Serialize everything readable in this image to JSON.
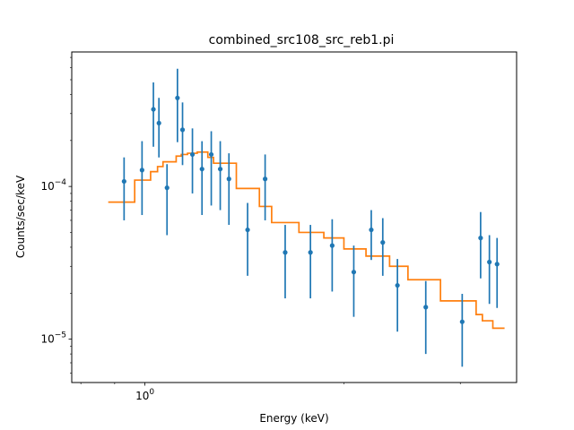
{
  "chart_data": {
    "type": "scatter",
    "title": "combined_src108_src_reb1.pi",
    "xlabel": "Energy (keV)",
    "ylabel": "Counts/sec/keV",
    "xscale": "log",
    "yscale": "log",
    "xlim": [
      0.775,
      3.65
    ],
    "ylim": [
      5.2e-06,
      0.00076
    ],
    "x_tick_labels": [
      {
        "value": 1.0,
        "label": "10^0"
      }
    ],
    "y_tick_labels": [
      {
        "value": 1e-05,
        "label": "10^-5"
      },
      {
        "value": 0.0001,
        "label": "10^-4"
      }
    ],
    "grid": false,
    "colors": {
      "data": "#1f77b4",
      "model": "#ff7f0e"
    },
    "series": [
      {
        "kind": "data-with-errorbars",
        "points": [
          {
            "x": 0.93,
            "y": 0.000108,
            "ylo": 6e-05,
            "yhi": 0.000155
          },
          {
            "x": 0.99,
            "y": 0.000128,
            "ylo": 6.5e-05,
            "yhi": 0.000198
          },
          {
            "x": 1.03,
            "y": 0.00032,
            "ylo": 0.000182,
            "yhi": 0.00048
          },
          {
            "x": 1.05,
            "y": 0.00026,
            "ylo": 0.000155,
            "yhi": 0.00038
          },
          {
            "x": 1.08,
            "y": 9.8e-05,
            "ylo": 4.8e-05,
            "yhi": 0.00014
          },
          {
            "x": 1.12,
            "y": 0.00038,
            "ylo": 0.000195,
            "yhi": 0.00059
          },
          {
            "x": 1.14,
            "y": 0.000235,
            "ylo": 0.000138,
            "yhi": 0.000355
          },
          {
            "x": 1.18,
            "y": 0.000162,
            "ylo": 9e-05,
            "yhi": 0.00024
          },
          {
            "x": 1.22,
            "y": 0.00013,
            "ylo": 6.5e-05,
            "yhi": 0.000198
          },
          {
            "x": 1.26,
            "y": 0.000162,
            "ylo": 7.5e-05,
            "yhi": 0.00023
          },
          {
            "x": 1.3,
            "y": 0.00013,
            "ylo": 7e-05,
            "yhi": 0.000198
          },
          {
            "x": 1.34,
            "y": 0.000112,
            "ylo": 5.6e-05,
            "yhi": 0.000165
          },
          {
            "x": 1.43,
            "y": 5.2e-05,
            "ylo": 2.6e-05,
            "yhi": 7.8e-05
          },
          {
            "x": 1.52,
            "y": 0.000112,
            "ylo": 6e-05,
            "yhi": 0.000162
          },
          {
            "x": 1.63,
            "y": 3.7e-05,
            "ylo": 1.85e-05,
            "yhi": 5.6e-05
          },
          {
            "x": 1.78,
            "y": 3.7e-05,
            "ylo": 1.85e-05,
            "yhi": 5.6e-05
          },
          {
            "x": 1.92,
            "y": 4.1e-05,
            "ylo": 2.05e-05,
            "yhi": 6.1e-05
          },
          {
            "x": 2.07,
            "y": 2.75e-05,
            "ylo": 1.4e-05,
            "yhi": 4.1e-05
          },
          {
            "x": 2.2,
            "y": 5.2e-05,
            "ylo": 3.3e-05,
            "yhi": 7e-05
          },
          {
            "x": 2.29,
            "y": 4.3e-05,
            "ylo": 2.6e-05,
            "yhi": 6.2e-05
          },
          {
            "x": 2.41,
            "y": 2.25e-05,
            "ylo": 1.12e-05,
            "yhi": 3.35e-05
          },
          {
            "x": 2.66,
            "y": 1.62e-05,
            "ylo": 8e-06,
            "yhi": 2.4e-05
          },
          {
            "x": 3.02,
            "y": 1.3e-05,
            "ylo": 6.6e-06,
            "yhi": 1.98e-05
          },
          {
            "x": 3.22,
            "y": 4.6e-05,
            "ylo": 2.5e-05,
            "yhi": 6.8e-05
          },
          {
            "x": 3.32,
            "y": 3.2e-05,
            "ylo": 1.7e-05,
            "yhi": 4.8e-05
          },
          {
            "x": 3.41,
            "y": 3.1e-05,
            "ylo": 1.6e-05,
            "yhi": 4.6e-05
          }
        ]
      },
      {
        "kind": "model-step",
        "steps": [
          {
            "x0": 0.88,
            "x1": 0.965,
            "y": 7.9e-05
          },
          {
            "x0": 0.965,
            "x1": 1.02,
            "y": 0.00011
          },
          {
            "x0": 1.02,
            "x1": 1.045,
            "y": 0.000125
          },
          {
            "x0": 1.045,
            "x1": 1.065,
            "y": 0.000135
          },
          {
            "x0": 1.065,
            "x1": 1.115,
            "y": 0.000145
          },
          {
            "x0": 1.115,
            "x1": 1.135,
            "y": 0.000158
          },
          {
            "x0": 1.135,
            "x1": 1.16,
            "y": 0.000162
          },
          {
            "x0": 1.16,
            "x1": 1.2,
            "y": 0.000165
          },
          {
            "x0": 1.2,
            "x1": 1.245,
            "y": 0.000168
          },
          {
            "x0": 1.245,
            "x1": 1.27,
            "y": 0.000155
          },
          {
            "x0": 1.27,
            "x1": 1.375,
            "y": 0.000142
          },
          {
            "x0": 1.375,
            "x1": 1.49,
            "y": 9.7e-05
          },
          {
            "x0": 1.49,
            "x1": 1.555,
            "y": 7.4e-05
          },
          {
            "x0": 1.555,
            "x1": 1.71,
            "y": 5.8e-05
          },
          {
            "x0": 1.71,
            "x1": 1.865,
            "y": 5e-05
          },
          {
            "x0": 1.865,
            "x1": 2.0,
            "y": 4.6e-05
          },
          {
            "x0": 2.0,
            "x1": 2.16,
            "y": 3.9e-05
          },
          {
            "x0": 2.16,
            "x1": 2.345,
            "y": 3.5e-05
          },
          {
            "x0": 2.345,
            "x1": 2.5,
            "y": 3e-05
          },
          {
            "x0": 2.5,
            "x1": 2.8,
            "y": 2.45e-05
          },
          {
            "x0": 2.8,
            "x1": 3.17,
            "y": 1.78e-05
          },
          {
            "x0": 3.17,
            "x1": 3.24,
            "y": 1.45e-05
          },
          {
            "x0": 3.24,
            "x1": 3.36,
            "y": 1.32e-05
          },
          {
            "x0": 3.36,
            "x1": 3.5,
            "y": 1.18e-05
          }
        ]
      }
    ]
  }
}
